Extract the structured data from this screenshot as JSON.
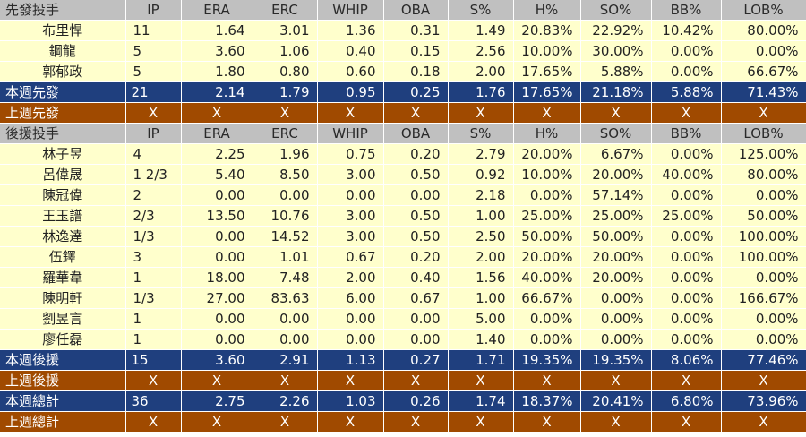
{
  "starters": {
    "header": [
      "先發投手",
      "IP",
      "ERA",
      "ERC",
      "WHIP",
      "OBA",
      "S%",
      "H%",
      "SO%",
      "BB%",
      "LOB%"
    ],
    "rows": [
      [
        "布里悍",
        "11",
        "1.64",
        "3.01",
        "1.36",
        "0.31",
        "1.49",
        "20.83%",
        "22.92%",
        "10.42%",
        "80.00%"
      ],
      [
        "鋼龍",
        "5",
        "3.60",
        "1.06",
        "0.40",
        "0.15",
        "2.56",
        "10.00%",
        "30.00%",
        "0.00%",
        "0.00%"
      ],
      [
        "郭郁政",
        "5",
        "1.80",
        "0.80",
        "0.60",
        "0.18",
        "2.00",
        "17.65%",
        "5.88%",
        "0.00%",
        "66.67%"
      ]
    ],
    "this_week": [
      "本週先發",
      "21",
      "2.14",
      "1.79",
      "0.95",
      "0.25",
      "1.76",
      "17.65%",
      "21.18%",
      "5.88%",
      "71.43%"
    ],
    "last_week": [
      "上週先發",
      "X",
      "X",
      "X",
      "X",
      "X",
      "X",
      "X",
      "X",
      "X",
      "X"
    ]
  },
  "relievers": {
    "header": [
      "後援投手",
      "IP",
      "ERA",
      "ERC",
      "WHIP",
      "OBA",
      "S%",
      "H%",
      "SO%",
      "BB%",
      "LOB%"
    ],
    "rows": [
      [
        "林子昱",
        "4",
        "2.25",
        "1.96",
        "0.75",
        "0.20",
        "2.79",
        "20.00%",
        "6.67%",
        "0.00%",
        "125.00%"
      ],
      [
        "呂偉晟",
        "1 2/3",
        "5.40",
        "8.50",
        "3.00",
        "0.50",
        "0.92",
        "10.00%",
        "20.00%",
        "40.00%",
        "80.00%"
      ],
      [
        "陳冠偉",
        "2",
        "0.00",
        "0.00",
        "0.00",
        "0.00",
        "2.18",
        "0.00%",
        "57.14%",
        "0.00%",
        "0.00%"
      ],
      [
        "王玉譜",
        "  2/3",
        "13.50",
        "10.76",
        "3.00",
        "0.50",
        "1.00",
        "25.00%",
        "25.00%",
        "25.00%",
        "50.00%"
      ],
      [
        "林逸達",
        "  1/3",
        "0.00",
        "14.52",
        "3.00",
        "0.50",
        "2.50",
        "50.00%",
        "50.00%",
        "0.00%",
        "100.00%"
      ],
      [
        "伍鐸",
        "3",
        "0.00",
        "1.01",
        "0.67",
        "0.20",
        "2.00",
        "20.00%",
        "20.00%",
        "0.00%",
        "100.00%"
      ],
      [
        "羅華韋",
        "1",
        "18.00",
        "7.48",
        "2.00",
        "0.40",
        "1.56",
        "40.00%",
        "20.00%",
        "0.00%",
        "0.00%"
      ],
      [
        "陳明軒",
        "  1/3",
        "27.00",
        "83.63",
        "6.00",
        "0.67",
        "1.00",
        "66.67%",
        "0.00%",
        "0.00%",
        "166.67%"
      ],
      [
        "劉昱言",
        "1",
        "0.00",
        "0.00",
        "0.00",
        "0.00",
        "5.00",
        "0.00%",
        "0.00%",
        "0.00%",
        "0.00%"
      ],
      [
        "廖任磊",
        "1",
        "0.00",
        "0.00",
        "0.00",
        "0.00",
        "1.40",
        "0.00%",
        "0.00%",
        "0.00%",
        "0.00%"
      ]
    ],
    "this_week": [
      "本週後援",
      "15",
      "3.60",
      "2.91",
      "1.13",
      "0.27",
      "1.71",
      "19.35%",
      "19.35%",
      "8.06%",
      "77.46%"
    ],
    "last_week": [
      "上週後援",
      "X",
      "X",
      "X",
      "X",
      "X",
      "X",
      "X",
      "X",
      "X",
      "X"
    ]
  },
  "totals": {
    "this_week": [
      "本週總計",
      "36",
      "2.75",
      "2.26",
      "1.03",
      "0.26",
      "1.74",
      "18.37%",
      "20.41%",
      "6.80%",
      "73.96%"
    ],
    "last_week": [
      "上週總計",
      "X",
      "X",
      "X",
      "X",
      "X",
      "X",
      "X",
      "X",
      "X",
      "X"
    ]
  },
  "colors": {
    "header_bg": "#c0c0c0",
    "player_bg": "#ffffcc",
    "this_week_bg": "#1f3f7e",
    "last_week_bg": "#a04a00"
  }
}
